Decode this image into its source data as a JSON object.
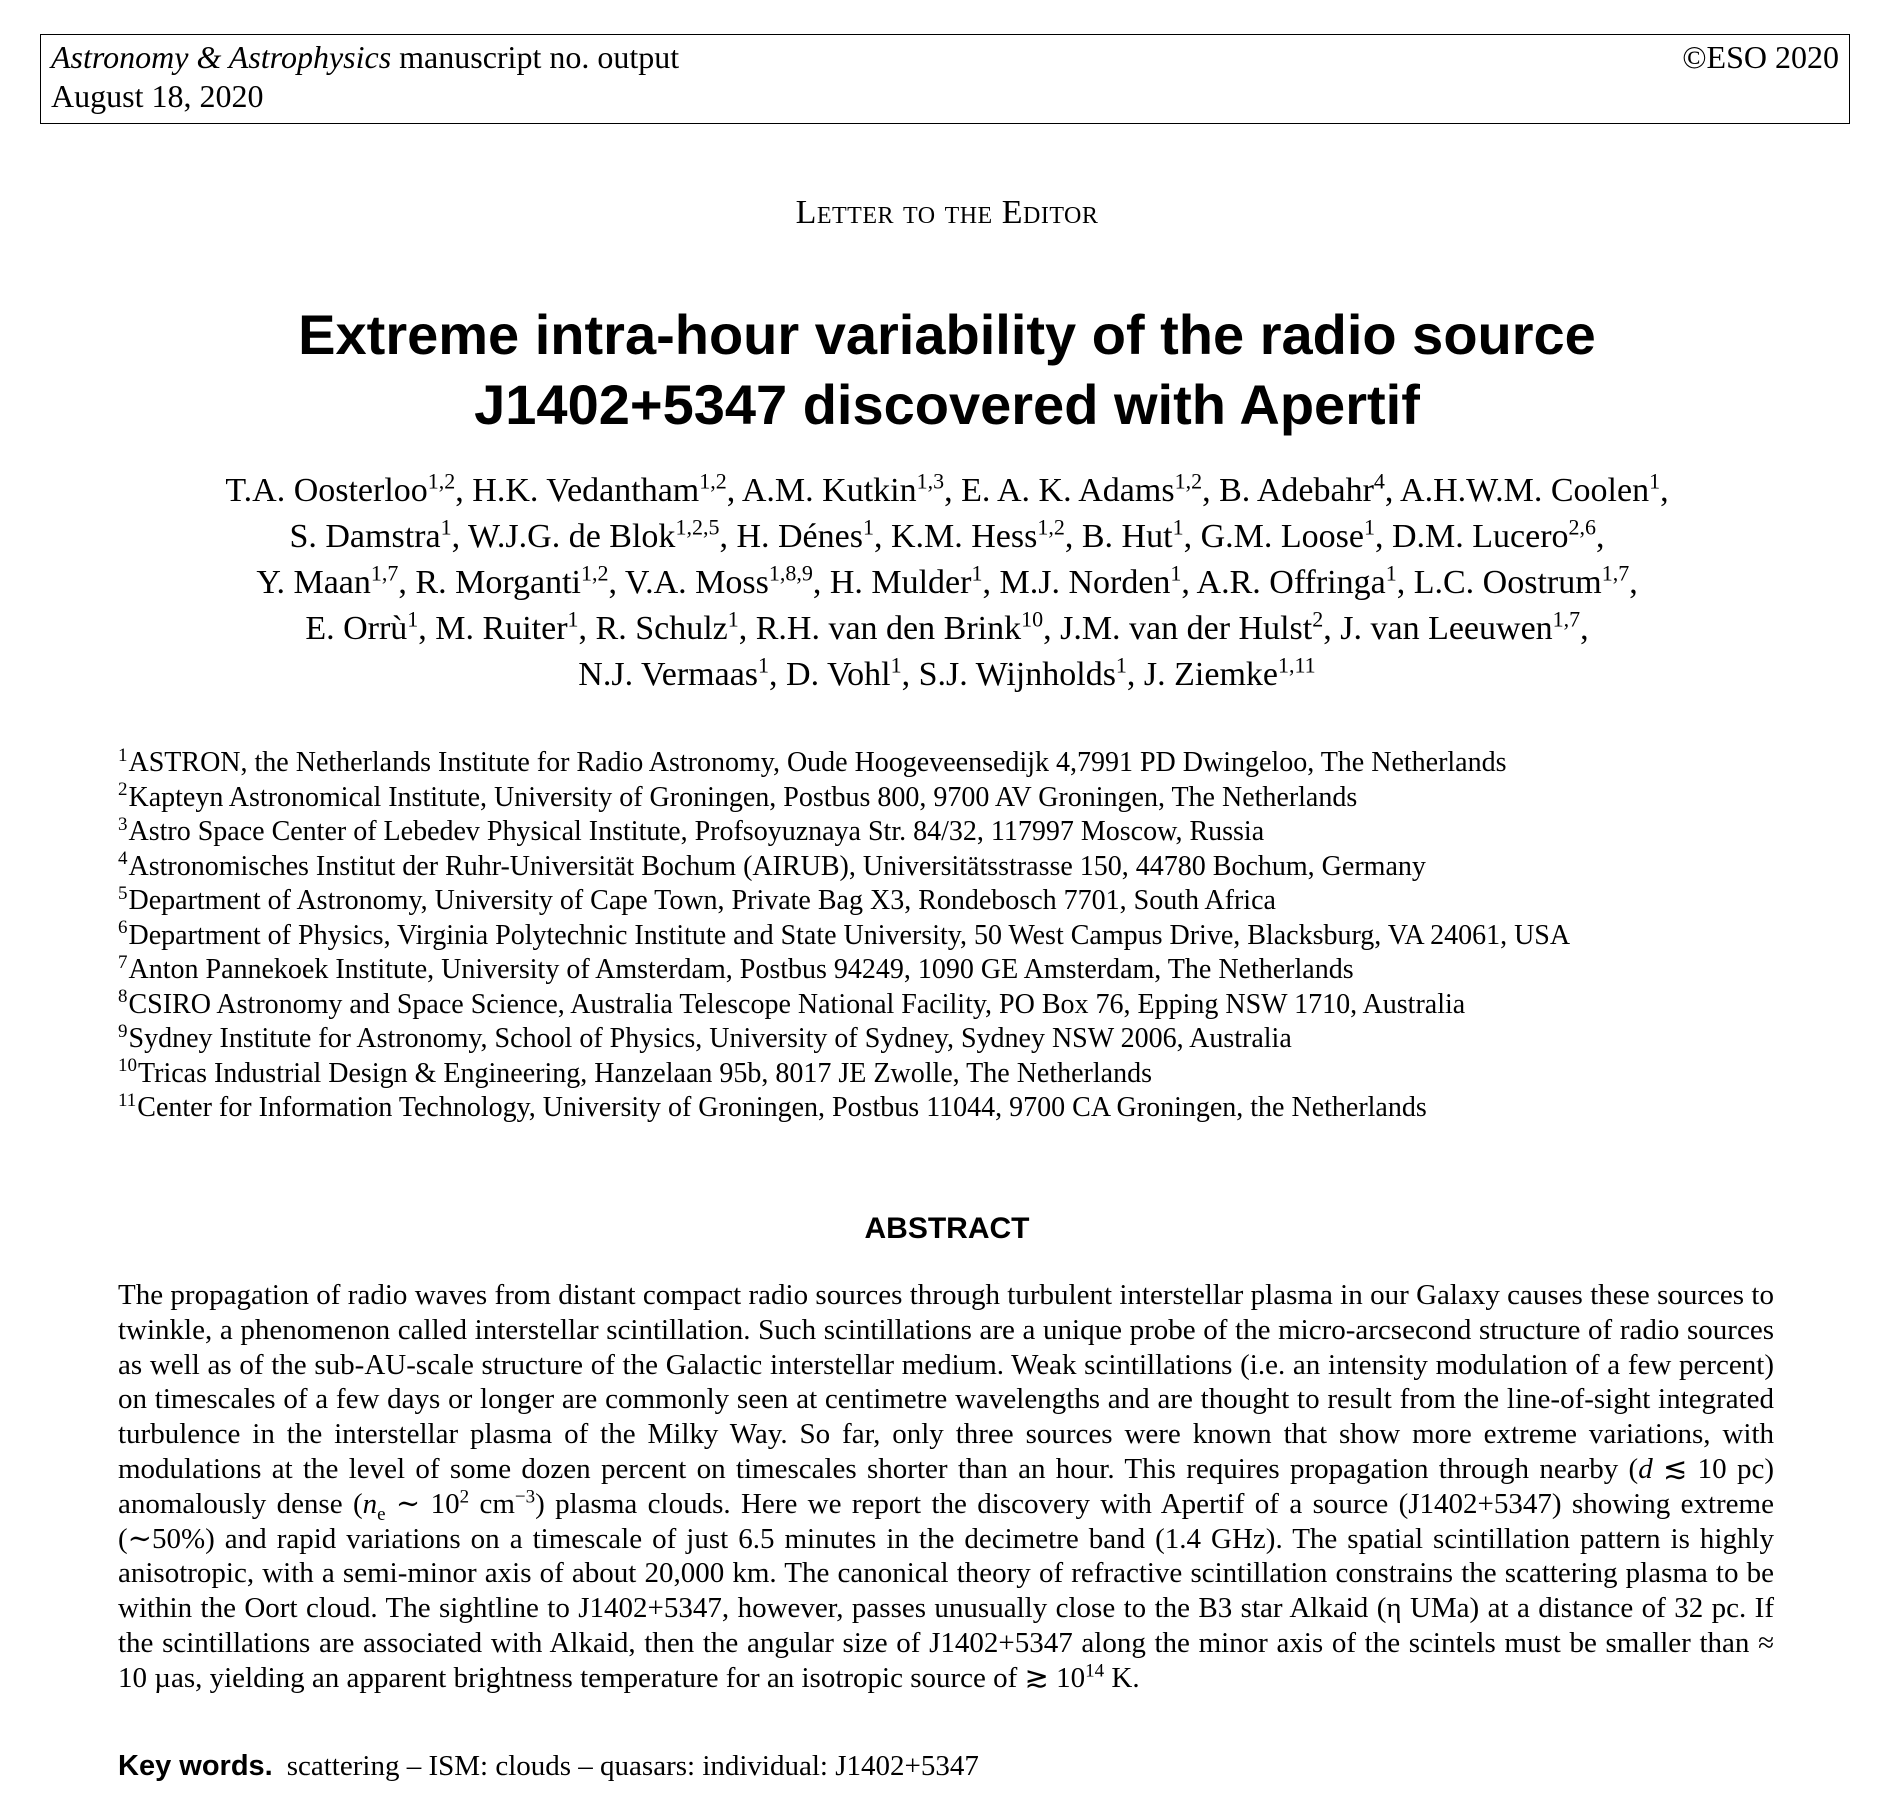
{
  "header": {
    "journal": "Astronomy & Astrophysics",
    "manuscript": "manuscript no. output",
    "date": "August 18, 2020",
    "copyright": "©ESO 2020"
  },
  "section_label": "Letter to the Editor",
  "title_lines": [
    "Extreme intra-hour variability of the radio source",
    "J1402+5347 discovered with Apertif"
  ],
  "authors": [
    {
      "name": "T.A. Oosterloo",
      "aff": "1,2"
    },
    {
      "name": "H.K. Vedantham",
      "aff": "1,2"
    },
    {
      "name": "A.M. Kutkin",
      "aff": "1,3"
    },
    {
      "name": "E. A. K. Adams",
      "aff": "1,2"
    },
    {
      "name": "B. Adebahr",
      "aff": "4"
    },
    {
      "name": "A.H.W.M. Coolen",
      "aff": "1"
    },
    {
      "name": "S. Damstra",
      "aff": "1"
    },
    {
      "name": "W.J.G. de Blok",
      "aff": "1,2,5"
    },
    {
      "name": "H. Dénes",
      "aff": "1"
    },
    {
      "name": "K.M. Hess",
      "aff": "1,2"
    },
    {
      "name": "B. Hut",
      "aff": "1"
    },
    {
      "name": "G.M. Loose",
      "aff": "1"
    },
    {
      "name": "D.M. Lucero",
      "aff": "2,6"
    },
    {
      "name": "Y. Maan",
      "aff": "1,7"
    },
    {
      "name": "R. Morganti",
      "aff": "1,2"
    },
    {
      "name": "V.A. Moss",
      "aff": "1,8,9"
    },
    {
      "name": "H. Mulder",
      "aff": "1"
    },
    {
      "name": "M.J. Norden",
      "aff": "1"
    },
    {
      "name": "A.R. Offringa",
      "aff": "1"
    },
    {
      "name": "L.C. Oostrum",
      "aff": "1,7"
    },
    {
      "name": "E. Orrù",
      "aff": "1"
    },
    {
      "name": "M. Ruiter",
      "aff": "1"
    },
    {
      "name": "R. Schulz",
      "aff": "1"
    },
    {
      "name": "R.H. van den Brink",
      "aff": "10"
    },
    {
      "name": "J.M. van der Hulst",
      "aff": "2"
    },
    {
      "name": "J. van Leeuwen",
      "aff": "1,7"
    },
    {
      "name": "N.J. Vermaas",
      "aff": "1"
    },
    {
      "name": "D. Vohl",
      "aff": "1"
    },
    {
      "name": "S.J. Wijnholds",
      "aff": "1"
    },
    {
      "name": "J. Ziemke",
      "aff": "1,11"
    }
  ],
  "affiliations": [
    {
      "num": "1",
      "text": "ASTRON, the Netherlands Institute for Radio Astronomy, Oude Hoogeveensedijk 4,7991 PD Dwingeloo, The Netherlands"
    },
    {
      "num": "2",
      "text": "Kapteyn Astronomical Institute, University of Groningen, Postbus 800, 9700 AV Groningen, The Netherlands"
    },
    {
      "num": "3",
      "text": "Astro Space Center of Lebedev Physical Institute, Profsoyuznaya Str. 84/32, 117997 Moscow, Russia"
    },
    {
      "num": "4",
      "text": "Astronomisches Institut der Ruhr-Universität Bochum (AIRUB), Universitätsstrasse 150, 44780 Bochum, Germany"
    },
    {
      "num": "5",
      "text": "Department of Astronomy, University of Cape Town, Private Bag X3, Rondebosch 7701, South Africa"
    },
    {
      "num": "6",
      "text": "Department of Physics, Virginia Polytechnic Institute and State University, 50 West Campus Drive, Blacksburg, VA 24061, USA"
    },
    {
      "num": "7",
      "text": "Anton Pannekoek Institute, University of Amsterdam, Postbus 94249, 1090 GE Amsterdam, The Netherlands"
    },
    {
      "num": "8",
      "text": "CSIRO Astronomy and Space Science, Australia Telescope National Facility, PO Box 76, Epping NSW 1710, Australia"
    },
    {
      "num": "9",
      "text": "Sydney Institute for Astronomy, School of Physics, University of Sydney, Sydney NSW 2006, Australia"
    },
    {
      "num": "10",
      "text": "Tricas Industrial Design & Engineering, Hanzelaan 95b, 8017 JE Zwolle, The Netherlands"
    },
    {
      "num": "11",
      "text": "Center for Information Technology, University of Groningen, Postbus 11044, 9700 CA Groningen, the Netherlands"
    }
  ],
  "abstract": {
    "heading": "ABSTRACT",
    "p1": "The propagation of radio waves from distant compact radio sources through turbulent interstellar plasma in our Galaxy causes these sources to twinkle, a phenomenon called interstellar scintillation. Such scintillations are a unique probe of the micro-arcsecond structure of radio sources as well as of the sub-AU-scale structure of the Galactic interstellar medium. Weak scintillations (i.e. an intensity modulation of a few percent) on timescales of a few days or longer are commonly seen at centimetre wavelengths and are thought to result from the line-of-sight integrated turbulence in the interstellar plasma of the Milky Way. So far, only three sources were known that show more extreme variations, with modulations at the level of some dozen percent on timescales shorter than an hour. This requires propagation through nearby (",
    "d_var": "d",
    "d_rel": " ≲ 10 pc) anomalously dense (",
    "ne_var": "n",
    "ne_sub": "e",
    "ne_rel": " ∼ 10",
    "ne_exp": "2",
    "ne_unit": " cm",
    "ne_unit_exp": "−3",
    "p2": ") plasma clouds. Here we report the discovery with Apertif of a source (J1402+5347) showing extreme (∼50%) and rapid variations on a timescale of just 6.5 minutes in the decimetre band (1.4 GHz). The spatial scintillation pattern is highly anisotropic, with a semi-minor axis of about 20,000 km. The canonical theory of refractive scintillation constrains the scattering plasma to be within the Oort cloud. The sightline to J1402+5347, however, passes unusually close to the B3 star Alkaid (η UMa) at a distance of 32 pc. If the scintillations are associated with Alkaid, then the angular size of J1402+5347 along the minor axis of the scintels must be smaller than ≈ 10 µas, yielding an apparent brightness temperature for an isotropic source of ≳ 10",
    "tb_exp": "14",
    "p3": " K."
  },
  "keywords": {
    "label": "Key words.",
    "text": "scattering – ISM: clouds – quasars: individual: J1402+5347"
  }
}
